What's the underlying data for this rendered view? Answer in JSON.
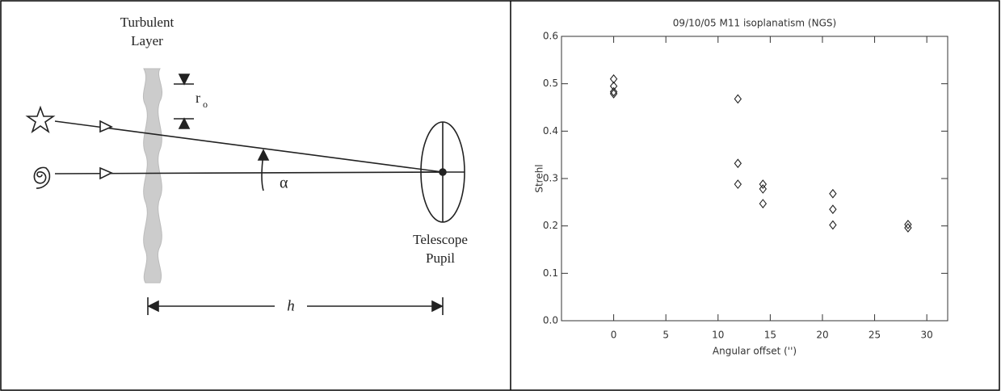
{
  "diagram": {
    "layer_label": [
      "Turbulent",
      "Layer"
    ],
    "r_main": "r",
    "r_sub": "o",
    "angle": "α",
    "pupil_label": [
      "Telescope",
      "Pupil"
    ],
    "distance": "h"
  },
  "chart_data": {
    "type": "scatter",
    "title": "09/10/05 M11 isoplanatism (NGS)",
    "x_label": "Angular offset ('')",
    "y_label": "Strehl",
    "x": [
      0,
      0,
      0,
      0,
      11.9,
      11.9,
      11.9,
      14.3,
      14.3,
      14.3,
      21.0,
      21.0,
      21.0,
      28.2,
      28.2
    ],
    "values": [
      0.51,
      0.495,
      0.483,
      0.479,
      0.468,
      0.332,
      0.288,
      0.288,
      0.278,
      0.247,
      0.268,
      0.235,
      0.202,
      0.203,
      0.196
    ],
    "color": "#222222",
    "marker": "diamond",
    "xlim": [
      -5,
      32
    ],
    "ylim": [
      0,
      0.6
    ],
    "xticks": [
      0,
      5,
      10,
      15,
      20,
      25,
      30
    ],
    "yticks": [
      {
        "value": 0,
        "label": "0.0"
      },
      {
        "value": 0.1,
        "label": "0.1"
      },
      {
        "value": 0.2,
        "label": "0.2"
      },
      {
        "value": 0.3,
        "label": "0.3"
      },
      {
        "value": 0.4,
        "label": "0.4"
      },
      {
        "value": 0.5,
        "label": "0.5"
      },
      {
        "value": 0.6,
        "label": "0.6"
      }
    ]
  }
}
